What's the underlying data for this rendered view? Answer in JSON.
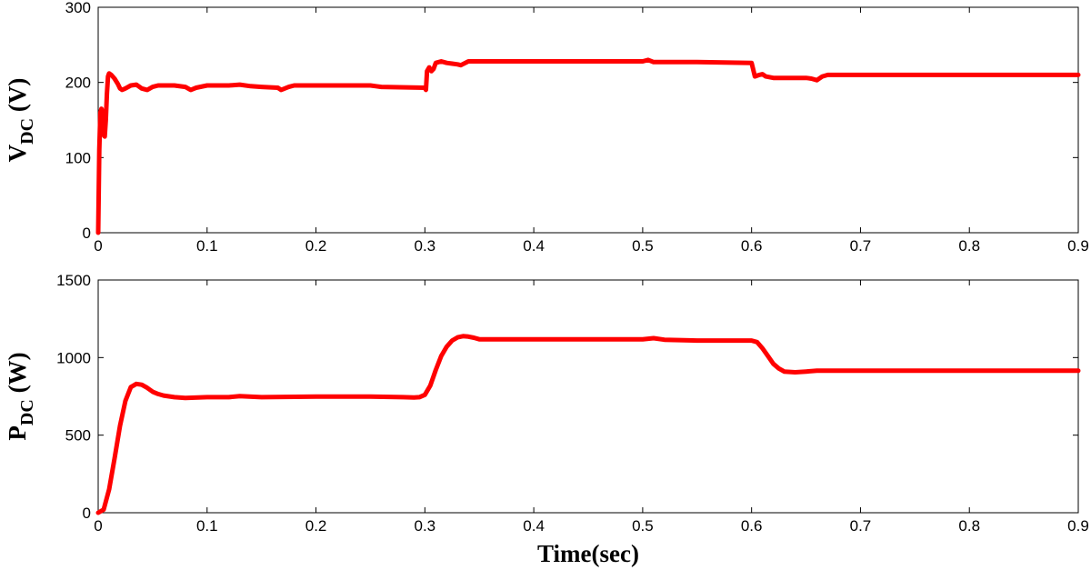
{
  "chart_data": [
    {
      "type": "line",
      "ylabel_main": "V",
      "ylabel_sub": "DC",
      "ylabel_unit": "(V)",
      "xlim": [
        0,
        0.9
      ],
      "ylim": [
        0,
        300
      ],
      "xticks": [
        0,
        0.1,
        0.2,
        0.3,
        0.4,
        0.5,
        0.6,
        0.7,
        0.8,
        0.9
      ],
      "xtick_labels": [
        "0",
        "0.1",
        "0.2",
        "0.3",
        "0.4",
        "0.5",
        "0.6",
        "0.7",
        "0.8",
        "0.9"
      ],
      "yticks": [
        0,
        100,
        200,
        300
      ],
      "ytick_labels": [
        "0",
        "100",
        "200",
        "300"
      ],
      "grid": false,
      "color": "#ff0000",
      "x": [
        0,
        0.001,
        0.002,
        0.003,
        0.004,
        0.005,
        0.006,
        0.007,
        0.008,
        0.009,
        0.01,
        0.012,
        0.015,
        0.018,
        0.02,
        0.022,
        0.025,
        0.03,
        0.035,
        0.04,
        0.045,
        0.05,
        0.055,
        0.06,
        0.07,
        0.08,
        0.085,
        0.09,
        0.1,
        0.12,
        0.13,
        0.14,
        0.15,
        0.165,
        0.168,
        0.175,
        0.18,
        0.2,
        0.25,
        0.255,
        0.26,
        0.3,
        0.301,
        0.302,
        0.304,
        0.306,
        0.308,
        0.31,
        0.315,
        0.32,
        0.325,
        0.33,
        0.333,
        0.34,
        0.35,
        0.4,
        0.5,
        0.505,
        0.51,
        0.55,
        0.6,
        0.601,
        0.603,
        0.607,
        0.61,
        0.613,
        0.62,
        0.63,
        0.65,
        0.655,
        0.66,
        0.665,
        0.67,
        0.68,
        0.7,
        0.8,
        0.9
      ],
      "values": [
        0,
        110,
        160,
        165,
        160,
        130,
        128,
        150,
        185,
        208,
        212,
        210,
        205,
        198,
        192,
        190,
        192,
        196,
        197,
        192,
        190,
        194,
        196,
        196,
        196,
        194,
        190,
        193,
        196,
        196,
        197,
        195,
        194,
        193,
        190,
        194,
        196,
        196,
        196,
        195,
        194,
        193,
        190,
        215,
        220,
        215,
        218,
        226,
        228,
        226,
        225,
        224,
        223,
        228,
        228,
        228,
        228,
        230,
        227,
        227,
        226,
        220,
        208,
        210,
        211,
        208,
        206,
        206,
        206,
        205,
        203,
        208,
        210,
        210,
        210,
        210,
        210
      ]
    },
    {
      "type": "line",
      "ylabel_main": "P",
      "ylabel_sub": "DC",
      "ylabel_unit": "(W)",
      "xlabel": "Time(sec)",
      "xlim": [
        0,
        0.9
      ],
      "ylim": [
        0,
        1500
      ],
      "xticks": [
        0,
        0.1,
        0.2,
        0.3,
        0.4,
        0.5,
        0.6,
        0.7,
        0.8,
        0.9
      ],
      "xtick_labels": [
        "0",
        "0.1",
        "0.2",
        "0.3",
        "0.4",
        "0.5",
        "0.6",
        "0.7",
        "0.8",
        "0.9"
      ],
      "yticks": [
        0,
        500,
        1000,
        1500
      ],
      "ytick_labels": [
        "0",
        "500",
        "1000",
        "1500"
      ],
      "grid": false,
      "color": "#ff0000",
      "x": [
        0,
        0.005,
        0.01,
        0.015,
        0.02,
        0.025,
        0.03,
        0.035,
        0.04,
        0.045,
        0.05,
        0.055,
        0.06,
        0.07,
        0.08,
        0.1,
        0.12,
        0.13,
        0.15,
        0.2,
        0.25,
        0.28,
        0.29,
        0.295,
        0.3,
        0.305,
        0.31,
        0.315,
        0.32,
        0.325,
        0.33,
        0.335,
        0.34,
        0.345,
        0.35,
        0.4,
        0.5,
        0.51,
        0.52,
        0.55,
        0.6,
        0.605,
        0.61,
        0.615,
        0.62,
        0.625,
        0.63,
        0.64,
        0.65,
        0.66,
        0.7,
        0.8,
        0.9
      ],
      "values": [
        0,
        20,
        150,
        350,
        560,
        720,
        810,
        830,
        825,
        805,
        780,
        765,
        755,
        745,
        740,
        745,
        745,
        752,
        745,
        748,
        748,
        745,
        743,
        745,
        760,
        820,
        920,
        1010,
        1070,
        1110,
        1130,
        1138,
        1135,
        1128,
        1118,
        1118,
        1118,
        1125,
        1115,
        1110,
        1110,
        1100,
        1060,
        1010,
        960,
        930,
        910,
        905,
        910,
        915,
        915,
        915,
        915
      ]
    }
  ]
}
